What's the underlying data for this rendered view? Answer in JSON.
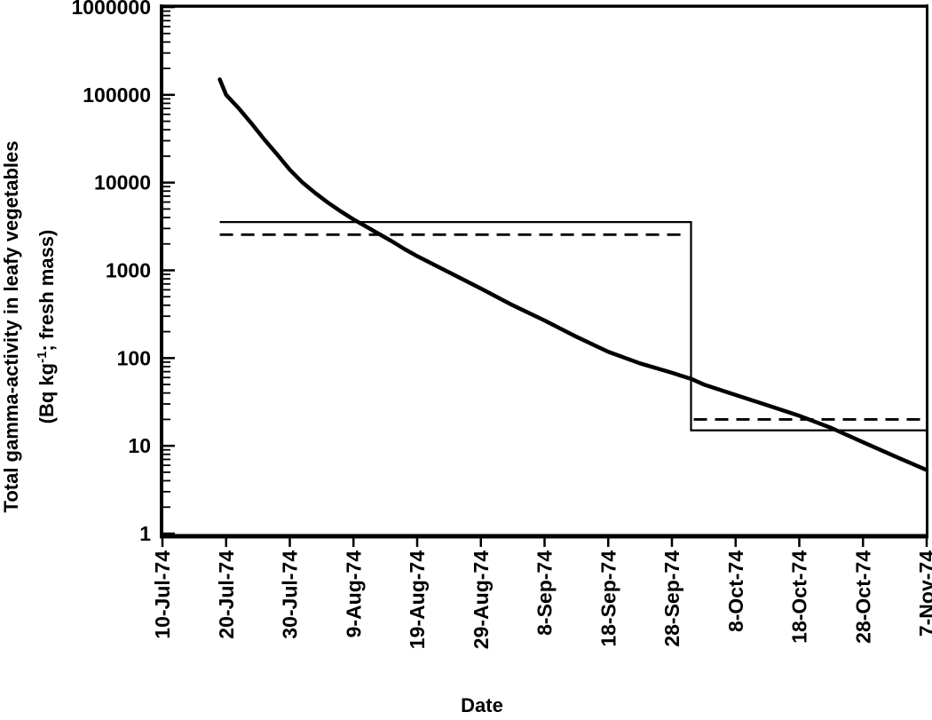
{
  "figure": {
    "background_color": "#ffffff",
    "ink_color": "#000000"
  },
  "chart_data": {
    "type": "line",
    "title": "",
    "xlabel": "Date",
    "ylabel_line1": "Total gamma-activity in leafy vegetables",
    "ylabel_line2": "(Bq kg-1; fresh mass)",
    "ylabel_line2_parts": {
      "pre": "(Bq kg",
      "sup": "-1",
      "post": "; fresh mass)"
    },
    "y_scale": "log",
    "ylim": [
      1,
      1000000
    ],
    "y_tick_labels": [
      "1",
      "10",
      "100",
      "1000",
      "10000",
      "100000",
      "1000000"
    ],
    "x_tick_labels": [
      "10-Jul-74",
      "20-Jul-74",
      "30-Jul-74",
      "9-Aug-74",
      "19-Aug-74",
      "29-Aug-74",
      "8-Sep-74",
      "18-Sep-74",
      "28-Sep-74",
      "8-Oct-74",
      "18-Oct-74",
      "28-Oct-74",
      "7-Nov-74"
    ],
    "x_range_days": 120,
    "grid": "off",
    "legend": "none",
    "series": [
      {
        "name": "total-gamma-activity-curve",
        "type": "curve",
        "line": "solid-thick",
        "points": [
          [
            "19-Jul-74",
            150000
          ],
          [
            "20-Jul-74",
            100000
          ],
          [
            "22-Jul-74",
            70000
          ],
          [
            "24-Jul-74",
            47000
          ],
          [
            "26-Jul-74",
            31000
          ],
          [
            "28-Jul-74",
            21000
          ],
          [
            "30-Jul-74",
            14000
          ],
          [
            "1-Aug-74",
            10000
          ],
          [
            "3-Aug-74",
            7600
          ],
          [
            "5-Aug-74",
            5900
          ],
          [
            "7-Aug-74",
            4700
          ],
          [
            "9-Aug-74",
            3800
          ],
          [
            "11-Aug-74",
            3150
          ],
          [
            "13-Aug-74",
            2600
          ],
          [
            "15-Aug-74",
            2150
          ],
          [
            "17-Aug-74",
            1750
          ],
          [
            "19-Aug-74",
            1450
          ],
          [
            "24-Aug-74",
            950
          ],
          [
            "29-Aug-74",
            620
          ],
          [
            "3-Sep-74",
            400
          ],
          [
            "8-Sep-74",
            268
          ],
          [
            "13-Sep-74",
            175
          ],
          [
            "18-Sep-74",
            118
          ],
          [
            "23-Sep-74",
            87
          ],
          [
            "28-Sep-74",
            68
          ],
          [
            "1-Oct-74",
            58
          ],
          [
            "3-Oct-74",
            50
          ],
          [
            "8-Oct-74",
            38
          ],
          [
            "13-Oct-74",
            29
          ],
          [
            "18-Oct-74",
            22
          ],
          [
            "23-Oct-74",
            16
          ],
          [
            "28-Oct-74",
            11
          ],
          [
            "2-Nov-74",
            7.6
          ],
          [
            "7-Nov-74",
            5.3
          ]
        ]
      },
      {
        "name": "limit-step-line-solid",
        "type": "step",
        "line": "solid-thin",
        "start": "19-Jul-74",
        "step_date": "1-Oct-74",
        "end": "7-Nov-74",
        "level_before": 3550,
        "level_after": 15
      },
      {
        "name": "limit-step-line-dashed",
        "type": "step",
        "line": "dashed",
        "start": "19-Jul-74",
        "step_date": "1-Oct-74",
        "end": "7-Nov-74",
        "level_before": 2550,
        "level_after": 20
      }
    ]
  }
}
